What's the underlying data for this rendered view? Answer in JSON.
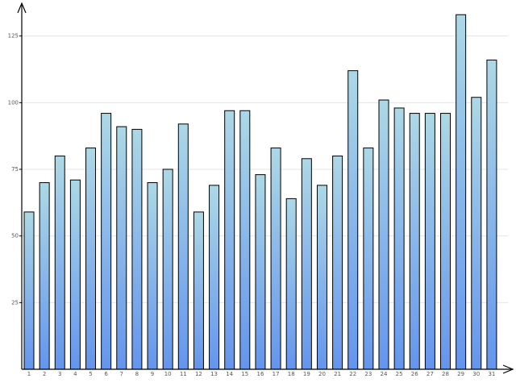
{
  "chart_data": {
    "type": "bar",
    "categories": [
      "1",
      "2",
      "3",
      "4",
      "5",
      "6",
      "7",
      "8",
      "9",
      "10",
      "11",
      "12",
      "13",
      "14",
      "15",
      "16",
      "17",
      "18",
      "19",
      "20",
      "21",
      "22",
      "23",
      "24",
      "25",
      "26",
      "27",
      "28",
      "29",
      "30",
      "31"
    ],
    "values": [
      59,
      70,
      80,
      71,
      83,
      96,
      91,
      90,
      70,
      75,
      92,
      59,
      69,
      97,
      97,
      73,
      83,
      64,
      79,
      69,
      80,
      112,
      83,
      101,
      98,
      96,
      96,
      96,
      133,
      102,
      116
    ],
    "colors": [
      "#add8e6",
      "#6495ed"
    ],
    "ylim": [
      0,
      137
    ],
    "yticks": [
      25,
      50,
      75,
      100,
      125
    ],
    "grid": true
  }
}
